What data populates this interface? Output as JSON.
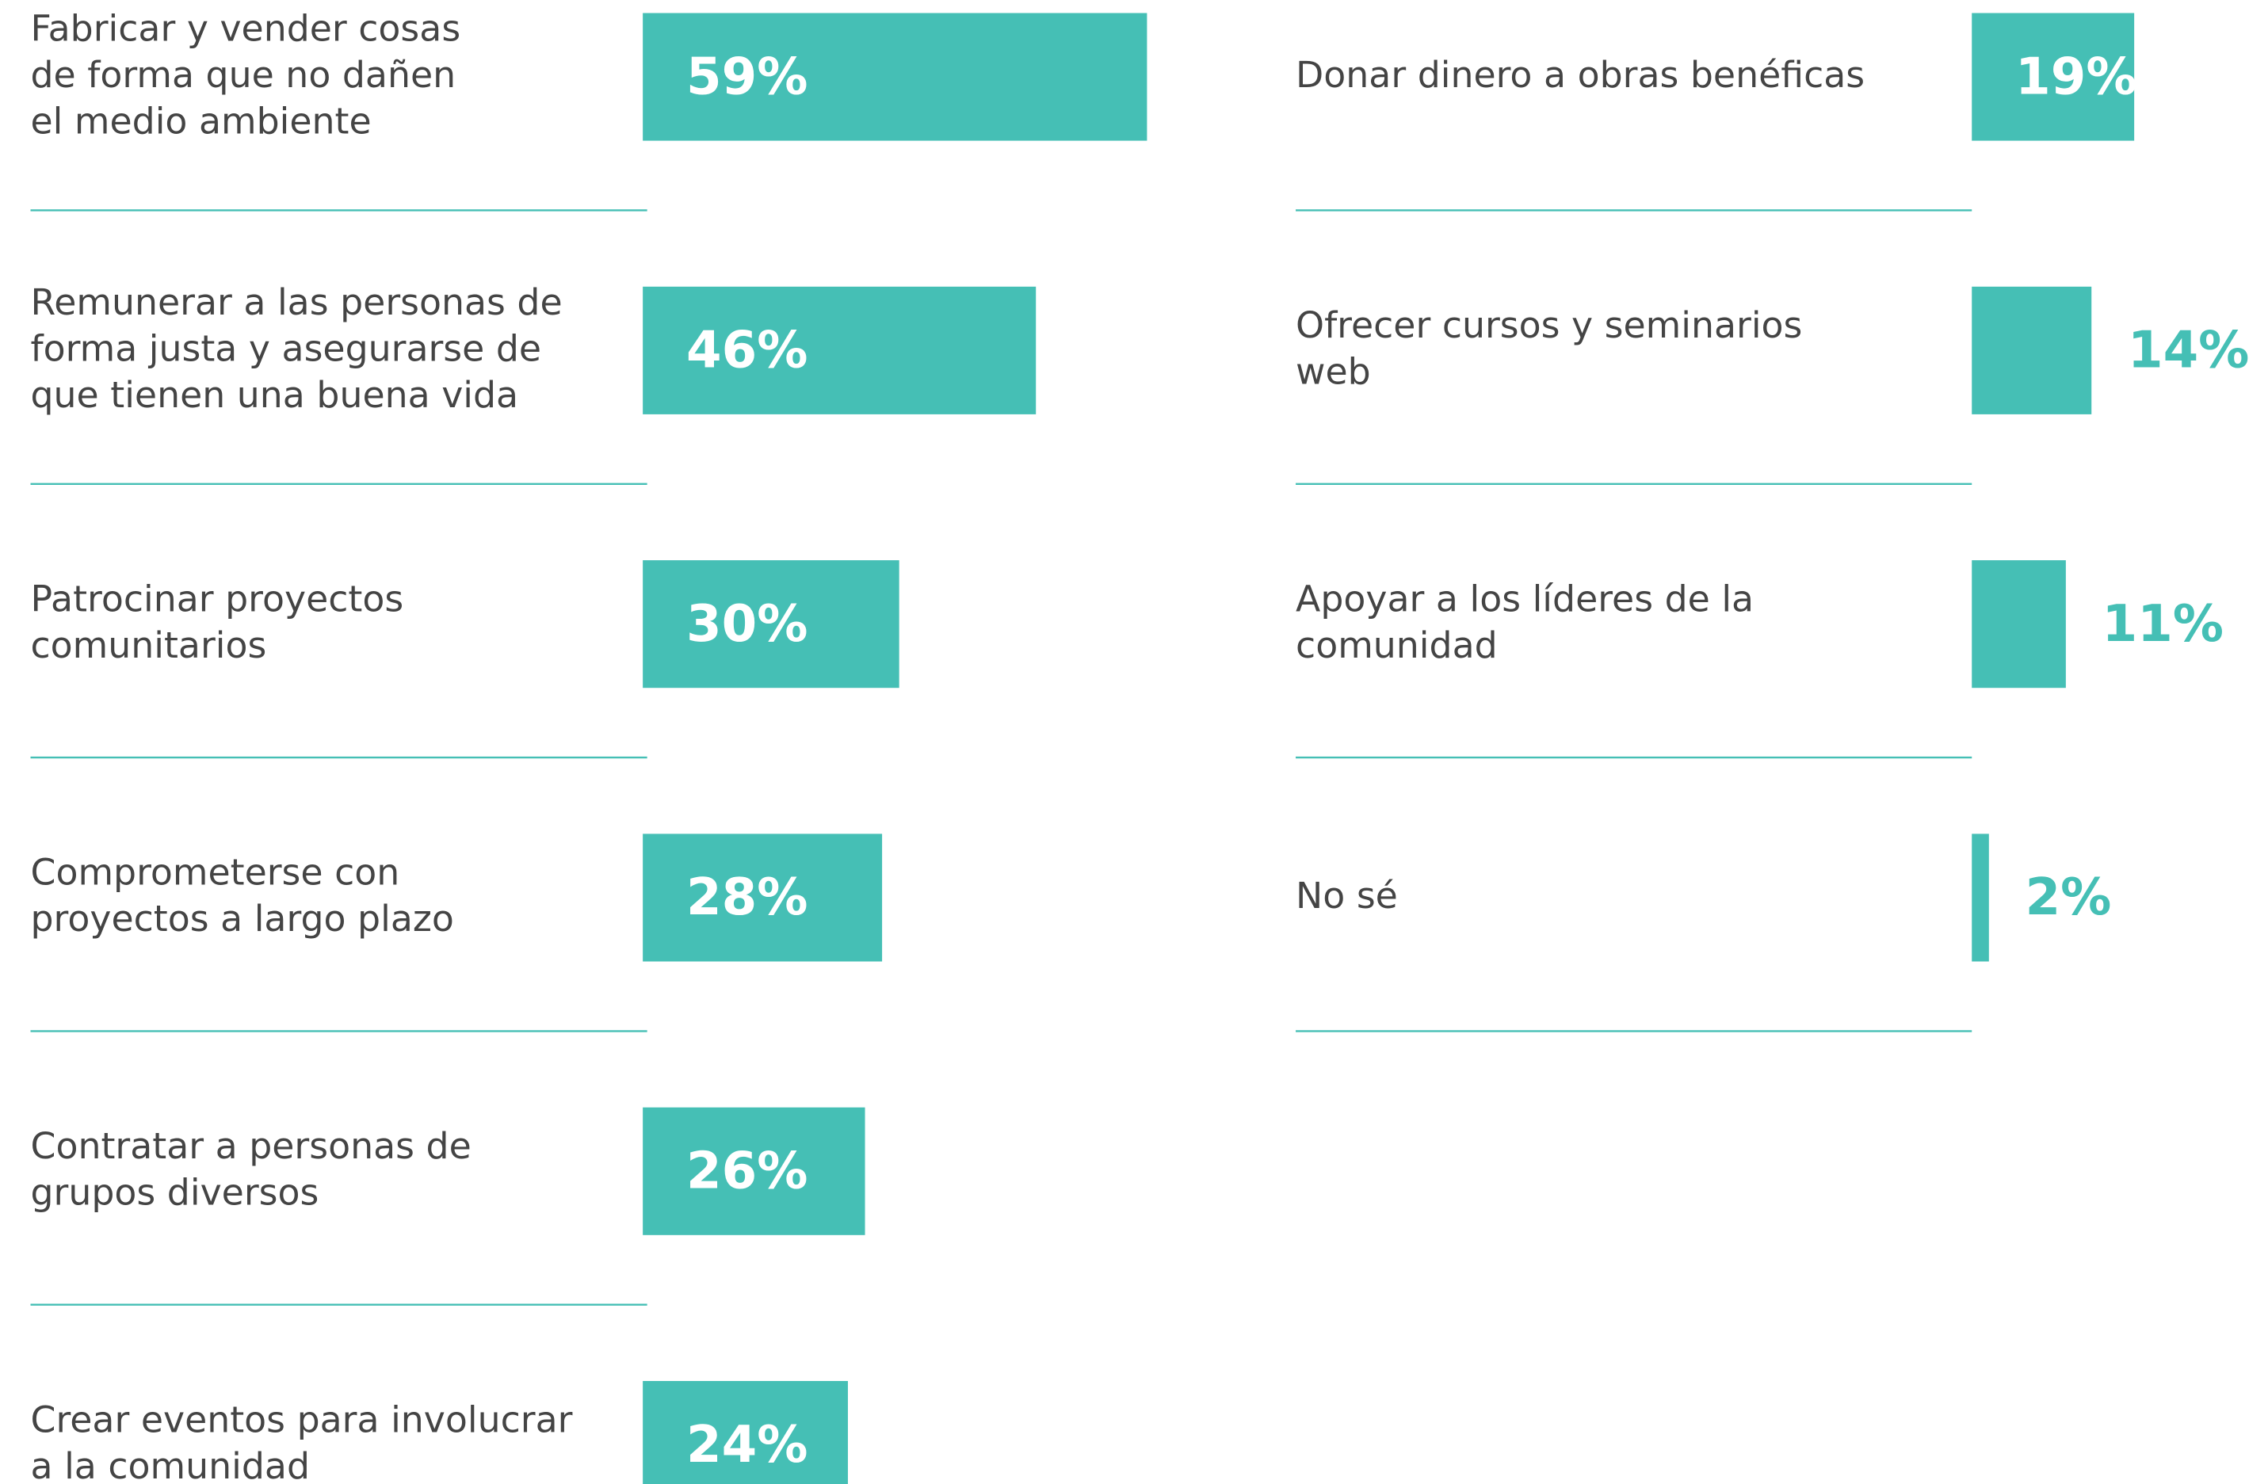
{
  "chart_data": [
    {
      "type": "bar",
      "color": "#45bfb5",
      "categories": [
        "Fabricar y vender cosas\nde forma que no dañen\nel medio ambiente",
        "Remunerar a las personas de\nforma justa y asegurarse de\nque tienen una buena vida",
        "Patrocinar proyectos\ncomunitarios",
        "Comprometerse con\nproyectos a largo plazo",
        "Contratar a personas de\ngrupos diversos",
        "Crear eventos para involucrar\na la comunidad"
      ],
      "values": [
        59,
        46,
        30,
        28,
        26,
        24
      ],
      "value_labels": [
        "59%",
        "46%",
        "30%",
        "28%",
        "26%",
        "24%"
      ]
    },
    {
      "type": "bar",
      "color": "#45bfb5",
      "categories": [
        "Donar dinero a obras benéficas",
        "Ofrecer cursos y seminarios\nweb",
        "Apoyar a los líderes de la\ncomunidad",
        "No sé"
      ],
      "values": [
        19,
        14,
        11,
        2
      ],
      "value_labels": [
        "19%",
        "14%",
        "11%",
        "2%"
      ]
    }
  ]
}
